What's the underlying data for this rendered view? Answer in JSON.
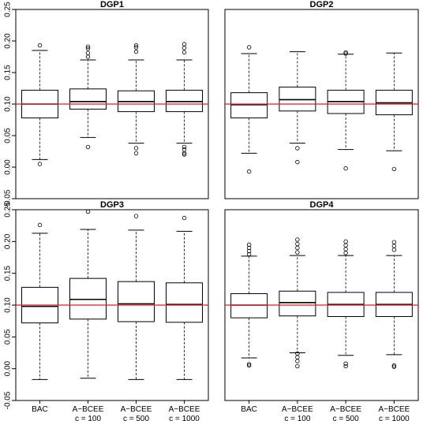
{
  "chart_data": [
    {
      "type": "boxplot",
      "title": "DGP1",
      "categories": [
        "BAC",
        "A−BCEE\nc = 100",
        "A−BCEE\nc = 500",
        "A−BCEE\nc = 1000"
      ],
      "ylim": [
        -0.05,
        0.25
      ],
      "y_ticks": [
        "-0.05",
        "0.00",
        "0.05",
        "0.10",
        "0.15",
        "0.20",
        "0.25"
      ],
      "reference_line": 0.1,
      "reference_color": "#e41a1c",
      "boxes": [
        {
          "whisker_low": 0.012,
          "q1": 0.078,
          "median": 0.1,
          "q3": 0.122,
          "whisker_high": 0.185,
          "outliers": [
            0.193,
            0.005
          ]
        },
        {
          "whisker_low": 0.047,
          "q1": 0.092,
          "median": 0.104,
          "q3": 0.124,
          "whisker_high": 0.17,
          "outliers": [
            0.191,
            0.188,
            0.181,
            0.175,
            0.032
          ]
        },
        {
          "whisker_low": 0.038,
          "q1": 0.088,
          "median": 0.104,
          "q3": 0.121,
          "whisker_high": 0.17,
          "outliers": [
            0.193,
            0.19,
            0.183,
            0.03,
            0.022
          ]
        },
        {
          "whisker_low": 0.038,
          "q1": 0.088,
          "median": 0.104,
          "q3": 0.122,
          "whisker_high": 0.17,
          "outliers": [
            0.195,
            0.189,
            0.182,
            0.032,
            0.028,
            0.022,
            0.02
          ]
        }
      ]
    },
    {
      "type": "boxplot",
      "title": "DGP2",
      "categories": [
        "BAC",
        "A−BCEE\nc = 100",
        "A−BCEE\nc = 500",
        "A−BCEE\nc = 1000"
      ],
      "ylim": [
        -0.05,
        0.25
      ],
      "y_ticks": [
        "-0.05",
        "0.00",
        "0.05",
        "0.10",
        "0.15",
        "0.20",
        "0.25"
      ],
      "reference_line": 0.1,
      "reference_color": "#e41a1c",
      "boxes": [
        {
          "whisker_low": 0.022,
          "q1": 0.078,
          "median": 0.099,
          "q3": 0.118,
          "whisker_high": 0.18,
          "outliers": [
            0.19,
            -0.007
          ]
        },
        {
          "whisker_low": 0.038,
          "q1": 0.089,
          "median": 0.107,
          "q3": 0.127,
          "whisker_high": 0.183,
          "outliers": [
            0.03,
            0.008
          ]
        },
        {
          "whisker_low": 0.028,
          "q1": 0.085,
          "median": 0.104,
          "q3": 0.122,
          "whisker_high": 0.179,
          "outliers": [
            0.182,
            0.18,
            -0.002
          ]
        },
        {
          "whisker_low": 0.026,
          "q1": 0.083,
          "median": 0.102,
          "q3": 0.122,
          "whisker_high": 0.181,
          "outliers": [
            -0.003
          ]
        }
      ]
    },
    {
      "type": "boxplot",
      "title": "DGP3",
      "categories": [
        "BAC",
        "A−BCEE\nc = 100",
        "A−BCEE\nc = 500",
        "A−BCEE\nc = 1000"
      ],
      "ylim": [
        -0.05,
        0.25
      ],
      "y_ticks": [
        "-0.05",
        "0.00",
        "0.05",
        "0.10",
        "0.15",
        "0.20",
        "0.25"
      ],
      "reference_line": 0.1,
      "reference_color": "#e41a1c",
      "boxes": [
        {
          "whisker_low": -0.017,
          "q1": 0.072,
          "median": 0.098,
          "q3": 0.128,
          "whisker_high": 0.213,
          "outliers": [
            0.226
          ]
        },
        {
          "whisker_low": -0.015,
          "q1": 0.078,
          "median": 0.109,
          "q3": 0.142,
          "whisker_high": 0.219,
          "outliers": [
            0.247
          ]
        },
        {
          "whisker_low": -0.017,
          "q1": 0.074,
          "median": 0.102,
          "q3": 0.137,
          "whisker_high": 0.218,
          "outliers": [
            0.24
          ]
        },
        {
          "whisker_low": -0.017,
          "q1": 0.073,
          "median": 0.101,
          "q3": 0.135,
          "whisker_high": 0.216,
          "outliers": [
            0.237
          ]
        }
      ]
    },
    {
      "type": "boxplot",
      "title": "DGP4",
      "categories": [
        "BAC",
        "A−BCEE\nc = 100",
        "A−BCEE\nc = 500",
        "A−BCEE\nc = 1000"
      ],
      "ylim": [
        -0.05,
        0.25
      ],
      "y_ticks": [
        "-0.05",
        "0.00",
        "0.05",
        "0.10",
        "0.15",
        "0.20",
        "0.25"
      ],
      "reference_line": 0.1,
      "reference_color": "#e41a1c",
      "boxes": [
        {
          "whisker_low": 0.017,
          "q1": 0.08,
          "median": 0.1,
          "q3": 0.118,
          "whisker_high": 0.177,
          "outliers": [
            0.195,
            0.19,
            0.185,
            0.18,
            0.007,
            0.005
          ]
        },
        {
          "whisker_low": 0.025,
          "q1": 0.083,
          "median": 0.104,
          "q3": 0.122,
          "whisker_high": 0.178,
          "outliers": [
            0.203,
            0.196,
            0.19,
            0.183,
            0.024,
            0.018,
            0.012,
            0.004
          ]
        },
        {
          "whisker_low": 0.021,
          "q1": 0.082,
          "median": 0.101,
          "q3": 0.12,
          "whisker_high": 0.178,
          "outliers": [
            0.2,
            0.194,
            0.188,
            0.182,
            0.008,
            0.004
          ]
        },
        {
          "whisker_low": 0.022,
          "q1": 0.082,
          "median": 0.101,
          "q3": 0.12,
          "whisker_high": 0.178,
          "outliers": [
            0.199,
            0.193,
            0.187,
            0.005,
            0.003
          ]
        }
      ]
    }
  ]
}
